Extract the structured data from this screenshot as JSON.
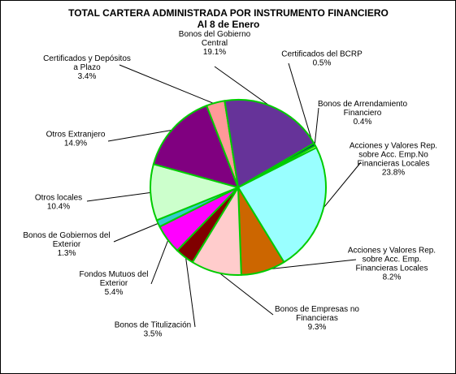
{
  "chart_data": {
    "type": "pie",
    "title": "TOTAL CARTERA ADMINISTRADA POR INSTRUMENTO FINANCIERO",
    "subtitle": "Al 8 de Enero",
    "slice_border_color": "#00cc00",
    "slices": [
      {
        "label": [
          "Acciones y Valores Rep.",
          "sobre Acc. Emp.No",
          "Financieras Locales"
        ],
        "value": 23.8,
        "display": "23.8%",
        "color": "#99ffff"
      },
      {
        "label": [
          "Acciones y Valores Rep.",
          "sobre Acc. Emp.",
          "Financieras Locales"
        ],
        "value": 8.2,
        "display": "8.2%",
        "color": "#cc6600"
      },
      {
        "label": [
          "Bonos de Empresas no",
          "Financieras"
        ],
        "value": 9.3,
        "display": "9.3%",
        "color": "#ffcccc"
      },
      {
        "label": [
          "Bonos de Titulización"
        ],
        "value": 3.5,
        "display": "3.5%",
        "color": "#800000"
      },
      {
        "label": [
          "Fondos Mutuos del",
          "Exterior"
        ],
        "value": 5.4,
        "display": "5.4%",
        "color": "#ff00ff"
      },
      {
        "label": [
          "Bonos de Gobiernos del",
          "Exterior"
        ],
        "value": 1.3,
        "display": "1.3%",
        "color": "#33cccc"
      },
      {
        "label": [
          "Otros locales"
        ],
        "value": 10.4,
        "display": "10.4%",
        "color": "#ccffcc"
      },
      {
        "label": [
          "Otros Extranjero"
        ],
        "value": 14.9,
        "display": "14.9%",
        "color": "#800080"
      },
      {
        "label": [
          "Certificados y Depósitos",
          "a Plazo"
        ],
        "value": 3.4,
        "display": "3.4%",
        "color": "#ff9999"
      },
      {
        "label": [
          "Bonos del Gobierno",
          "Central"
        ],
        "value": 19.1,
        "display": "19.1%",
        "color": "#663399"
      },
      {
        "label": [
          "Certificados del BCRP"
        ],
        "value": 0.5,
        "display": "0.5%",
        "color": "#003366"
      },
      {
        "label": [
          "Bonos de Arrendamiento",
          "Financiero"
        ],
        "value": 0.4,
        "display": "0.4%",
        "color": "#ffff99"
      }
    ]
  }
}
